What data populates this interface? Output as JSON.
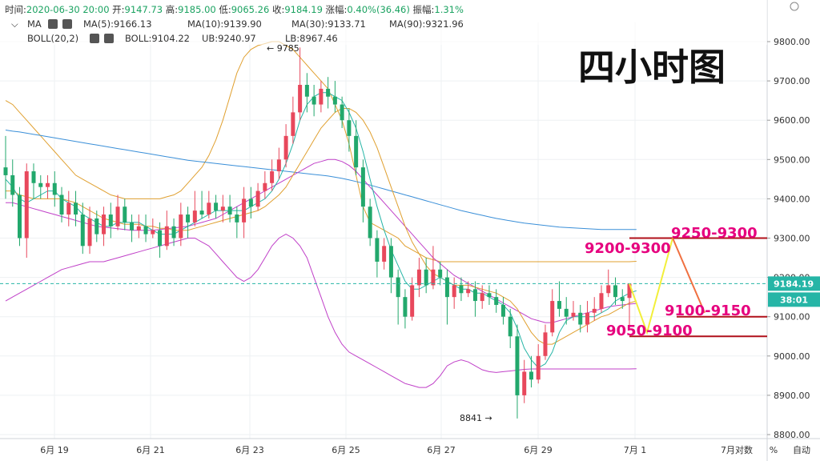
{
  "header": {
    "line1": [
      {
        "label": "时间:",
        "value": "2020-06-30 20:00"
      },
      {
        "label": "开:",
        "value": "9147.73"
      },
      {
        "label": "高:",
        "value": "9185.00"
      },
      {
        "label": "低:",
        "value": "9065.26"
      },
      {
        "label": "收:",
        "value": "9184.19"
      },
      {
        "label": "涨幅:",
        "value": "0.40%(36.46)"
      },
      {
        "label": "振幅:",
        "value": "1.31%"
      }
    ],
    "ma_label": "MA",
    "ma_items": [
      {
        "text": "MA(5):9166.13",
        "color": "#26b5a6"
      },
      {
        "text": "MA(10):9139.90",
        "color": "#e0a030"
      },
      {
        "text": "MA(30):9133.71",
        "color": "#c040c8"
      },
      {
        "text": "MA(90):9321.96",
        "color": "#3a8fd8"
      }
    ],
    "boll_label": "BOLL(20,2)",
    "boll_items": [
      {
        "text": "BOLL:9104.22",
        "color": "#26b5a6"
      },
      {
        "text": "UB:9240.97",
        "color": "#e0a030"
      },
      {
        "text": "LB:8967.46",
        "color": "#c040c8"
      }
    ]
  },
  "annotation_title": "四小时图",
  "annotations": {
    "high_mark": "9785",
    "low_mark": "8841",
    "current_price": "9184.19",
    "countdown": "38:01",
    "zones": [
      {
        "label": "9250-9300",
        "level": 9300
      },
      {
        "label": "9200-9300",
        "level": 9300
      },
      {
        "label": "9100-9150",
        "level": 9100
      },
      {
        "label": "9050-9100",
        "level": 9050
      }
    ]
  },
  "bottom_bar": {
    "percent": "%",
    "auto": "自动"
  },
  "colors": {
    "up": "#e8485c",
    "down": "#22a86c",
    "ma5": "#26b5a6",
    "ma10": "#e0a030",
    "ma30": "#c040c8",
    "ma90": "#3a8fd8",
    "zone": "#e6007e"
  },
  "chart_data": {
    "type": "candlestick",
    "ylim": [
      8800,
      9850
    ],
    "yticks": [
      8800,
      8900,
      9000,
      9100,
      9200,
      9300,
      9400,
      9500,
      9600,
      9700,
      9800
    ],
    "x_labels": [
      "6月 19",
      "6月 21",
      "6月 23",
      "6月 25",
      "6月 27",
      "6月 29",
      "7月 1",
      "7月对数"
    ],
    "candles": [
      [
        9480,
        9460,
        9560,
        9400
      ],
      [
        9460,
        9410,
        9500,
        9380
      ],
      [
        9410,
        9300,
        9430,
        9280
      ],
      [
        9300,
        9470,
        9490,
        9250
      ],
      [
        9470,
        9440,
        9490,
        9400
      ],
      [
        9440,
        9430,
        9460,
        9400
      ],
      [
        9430,
        9440,
        9460,
        9400
      ],
      [
        9440,
        9410,
        9470,
        9380
      ],
      [
        9410,
        9360,
        9430,
        9340
      ],
      [
        9360,
        9390,
        9420,
        9330
      ],
      [
        9390,
        9360,
        9420,
        9330
      ],
      [
        9360,
        9280,
        9390,
        9260
      ],
      [
        9280,
        9350,
        9380,
        9260
      ],
      [
        9350,
        9310,
        9370,
        9290
      ],
      [
        9310,
        9360,
        9380,
        9280
      ],
      [
        9360,
        9330,
        9390,
        9300
      ],
      [
        9330,
        9380,
        9410,
        9320
      ],
      [
        9380,
        9340,
        9400,
        9320
      ],
      [
        9340,
        9320,
        9360,
        9290
      ],
      [
        9320,
        9330,
        9360,
        9300
      ],
      [
        9330,
        9310,
        9360,
        9290
      ],
      [
        9310,
        9320,
        9350,
        9300
      ],
      [
        9320,
        9280,
        9340,
        9250
      ],
      [
        9280,
        9330,
        9370,
        9270
      ],
      [
        9330,
        9300,
        9350,
        9280
      ],
      [
        9300,
        9360,
        9390,
        9280
      ],
      [
        9360,
        9340,
        9380,
        9300
      ],
      [
        9340,
        9370,
        9420,
        9330
      ],
      [
        9370,
        9360,
        9420,
        9350
      ],
      [
        9360,
        9390,
        9420,
        9350
      ],
      [
        9390,
        9370,
        9410,
        9350
      ],
      [
        9370,
        9380,
        9410,
        9340
      ],
      [
        9380,
        9360,
        9410,
        9340
      ],
      [
        9360,
        9340,
        9380,
        9300
      ],
      [
        9340,
        9400,
        9430,
        9300
      ],
      [
        9400,
        9380,
        9430,
        9350
      ],
      [
        9380,
        9420,
        9440,
        9370
      ],
      [
        9420,
        9440,
        9470,
        9400
      ],
      [
        9440,
        9470,
        9500,
        9420
      ],
      [
        9470,
        9500,
        9530,
        9450
      ],
      [
        9500,
        9560,
        9590,
        9480
      ],
      [
        9560,
        9620,
        9660,
        9540
      ],
      [
        9620,
        9690,
        9785,
        9600
      ],
      [
        9690,
        9660,
        9720,
        9620
      ],
      [
        9660,
        9640,
        9690,
        9610
      ],
      [
        9640,
        9680,
        9700,
        9620
      ],
      [
        9680,
        9660,
        9710,
        9630
      ],
      [
        9660,
        9640,
        9700,
        9620
      ],
      [
        9640,
        9600,
        9660,
        9580
      ],
      [
        9600,
        9560,
        9630,
        9520
      ],
      [
        9560,
        9480,
        9600,
        9460
      ],
      [
        9480,
        9380,
        9500,
        9340
      ],
      [
        9380,
        9300,
        9400,
        9280
      ],
      [
        9300,
        9240,
        9320,
        9200
      ],
      [
        9240,
        9280,
        9300,
        9220
      ],
      [
        9280,
        9200,
        9300,
        9160
      ],
      [
        9200,
        9150,
        9220,
        9080
      ],
      [
        9150,
        9100,
        9170,
        9070
      ],
      [
        9100,
        9180,
        9200,
        9090
      ],
      [
        9180,
        9220,
        9250,
        9150
      ],
      [
        9220,
        9180,
        9250,
        9160
      ],
      [
        9180,
        9220,
        9280,
        9170
      ],
      [
        9220,
        9200,
        9240,
        9180
      ],
      [
        9200,
        9150,
        9220,
        9080
      ],
      [
        9150,
        9180,
        9200,
        9120
      ],
      [
        9180,
        9160,
        9200,
        9140
      ],
      [
        9160,
        9170,
        9190,
        9150
      ],
      [
        9170,
        9140,
        9190,
        9100
      ],
      [
        9140,
        9160,
        9180,
        9120
      ],
      [
        9160,
        9150,
        9180,
        9130
      ],
      [
        9150,
        9130,
        9170,
        9110
      ],
      [
        9130,
        9100,
        9150,
        9080
      ],
      [
        9100,
        9050,
        9120,
        9020
      ],
      [
        9050,
        8900,
        9080,
        8841
      ],
      [
        8900,
        8960,
        8990,
        8880
      ],
      [
        8960,
        8940,
        9000,
        8920
      ],
      [
        8940,
        9000,
        9030,
        8930
      ],
      [
        9000,
        9060,
        9080,
        8990
      ],
      [
        9060,
        9140,
        9170,
        9050
      ],
      [
        9140,
        9120,
        9190,
        9100
      ],
      [
        9120,
        9100,
        9150,
        9080
      ],
      [
        9100,
        9110,
        9140,
        9090
      ],
      [
        9110,
        9080,
        9130,
        9060
      ],
      [
        9080,
        9110,
        9140,
        9060
      ],
      [
        9110,
        9120,
        9150,
        9090
      ],
      [
        9120,
        9160,
        9180,
        9110
      ],
      [
        9160,
        9180,
        9220,
        9150
      ],
      [
        9180,
        9150,
        9200,
        9130
      ],
      [
        9150,
        9140,
        9170,
        9120
      ],
      [
        9147.73,
        9184.19,
        9185,
        9065.26
      ]
    ],
    "ma5": [
      9450,
      9430,
      9400,
      9390,
      9400,
      9410,
      9420,
      9420,
      9400,
      9390,
      9380,
      9360,
      9350,
      9340,
      9330,
      9330,
      9340,
      9340,
      9340,
      9340,
      9330,
      9320,
      9310,
      9310,
      9310,
      9320,
      9330,
      9340,
      9350,
      9360,
      9370,
      9370,
      9370,
      9370,
      9370,
      9380,
      9390,
      9400,
      9420,
      9450,
      9490,
      9540,
      9600,
      9640,
      9660,
      9670,
      9670,
      9660,
      9650,
      9620,
      9580,
      9520,
      9450,
      9380,
      9320,
      9270,
      9230,
      9190,
      9170,
      9170,
      9180,
      9190,
      9200,
      9190,
      9180,
      9170,
      9170,
      9160,
      9160,
      9150,
      9140,
      9130,
      9110,
      9070,
      9020,
      8990,
      8970,
      8980,
      9010,
      9060,
      9090,
      9100,
      9100,
      9100,
      9100,
      9110,
      9120,
      9140,
      9150,
      9160,
      9166.13
    ],
    "ma10": [
      9420,
      9420,
      9410,
      9405,
      9400,
      9400,
      9400,
      9400,
      9400,
      9395,
      9390,
      9380,
      9370,
      9360,
      9350,
      9345,
      9340,
      9335,
      9335,
      9335,
      9330,
      9330,
      9325,
      9325,
      9320,
      9320,
      9320,
      9325,
      9330,
      9335,
      9340,
      9345,
      9350,
      9355,
      9360,
      9365,
      9370,
      9380,
      9395,
      9410,
      9430,
      9460,
      9490,
      9520,
      9550,
      9580,
      9600,
      9620,
      9630,
      9630,
      9620,
      9600,
      9570,
      9530,
      9480,
      9430,
      9380,
      9330,
      9290,
      9260,
      9230,
      9210,
      9200,
      9190,
      9180,
      9180,
      9180,
      9175,
      9170,
      9165,
      9160,
      9150,
      9140,
      9120,
      9090,
      9060,
      9040,
      9030,
      9030,
      9040,
      9050,
      9060,
      9070,
      9080,
      9090,
      9100,
      9105,
      9115,
      9125,
      9135,
      9139.9
    ],
    "ma30": [
      9390,
      9390,
      9385,
      9380,
      9375,
      9370,
      9365,
      9360,
      9355,
      9350,
      9345,
      9340,
      9335,
      9330,
      9328,
      9326,
      9324,
      9322,
      9320,
      9320,
      9320,
      9320,
      9322,
      9324,
      9326,
      9328,
      9330,
      9335,
      9340,
      9345,
      9350,
      9360,
      9370,
      9380,
      9390,
      9400,
      9410,
      9420,
      9430,
      9440,
      9450,
      9460,
      9470,
      9480,
      9490,
      9495,
      9500,
      9500,
      9495,
      9485,
      9470,
      9450,
      9430,
      9410,
      9390,
      9370,
      9350,
      9330,
      9310,
      9290,
      9270,
      9250,
      9235,
      9220,
      9205,
      9195,
      9185,
      9175,
      9165,
      9155,
      9145,
      9135,
      9125,
      9115,
      9105,
      9095,
      9090,
      9085,
      9085,
      9090,
      9095,
      9100,
      9105,
      9110,
      9115,
      9120,
      9125,
      9128,
      9130,
      9132,
      9133.71
    ],
    "ma90": [
      9575,
      9572,
      9570,
      9567,
      9564,
      9561,
      9558,
      9555,
      9552,
      9549,
      9546,
      9543,
      9540,
      9537,
      9534,
      9531,
      9528,
      9525,
      9522,
      9519,
      9516,
      9513,
      9510,
      9507,
      9504,
      9501,
      9498,
      9496,
      9494,
      9492,
      9490,
      9488,
      9486,
      9484,
      9482,
      9480,
      9478,
      9476,
      9474,
      9472,
      9470,
      9468,
      9466,
      9464,
      9462,
      9460,
      9458,
      9455,
      9452,
      9448,
      9444,
      9440,
      9435,
      9430,
      9425,
      9420,
      9415,
      9410,
      9405,
      9400,
      9395,
      9390,
      9385,
      9380,
      9375,
      9370,
      9366,
      9362,
      9358,
      9354,
      9350,
      9347,
      9344,
      9341,
      9338,
      9336,
      9334,
      9332,
      9330,
      9328,
      9327,
      9326,
      9325,
      9324,
      9323,
      9322,
      9322,
      9322,
      9322,
      9322,
      9321.96
    ],
    "ub": [
      9650,
      9640,
      9620,
      9600,
      9580,
      9560,
      9540,
      9520,
      9500,
      9480,
      9460,
      9450,
      9440,
      9430,
      9420,
      9410,
      9405,
      9400,
      9400,
      9400,
      9400,
      9400,
      9400,
      9405,
      9410,
      9420,
      9440,
      9460,
      9480,
      9510,
      9550,
      9600,
      9660,
      9720,
      9760,
      9780,
      9790,
      9795,
      9800,
      9800,
      9790,
      9780,
      9760,
      9740,
      9720,
      9700,
      9680,
      9640,
      9600,
      9540,
      9460,
      9380,
      9340,
      9330,
      9320,
      9310,
      9300,
      9280,
      9270,
      9260,
      9250,
      9245,
      9240,
      9240,
      9240,
      9240,
      9240,
      9240,
      9240,
      9240,
      9240,
      9240,
      9240,
      9240,
      9240,
      9240,
      9240,
      9240,
      9240,
      9240,
      9240,
      9240,
      9240,
      9240,
      9240,
      9240,
      9240,
      9240,
      9240,
      9240,
      9240.97
    ],
    "lb": [
      9140,
      9150,
      9160,
      9170,
      9180,
      9190,
      9200,
      9210,
      9220,
      9225,
      9230,
      9235,
      9240,
      9240,
      9240,
      9245,
      9250,
      9255,
      9260,
      9265,
      9270,
      9275,
      9280,
      9285,
      9290,
      9295,
      9300,
      9300,
      9290,
      9280,
      9260,
      9240,
      9220,
      9200,
      9190,
      9200,
      9220,
      9250,
      9280,
      9300,
      9310,
      9300,
      9280,
      9250,
      9200,
      9150,
      9100,
      9060,
      9030,
      9010,
      9000,
      8990,
      8980,
      8970,
      8960,
      8950,
      8940,
      8930,
      8925,
      8920,
      8920,
      8930,
      8950,
      8975,
      8985,
      8990,
      8985,
      8975,
      8965,
      8960,
      8958,
      8960,
      8962,
      8964,
      8966,
      8967,
      8967,
      8967,
      8967,
      8967,
      8967,
      8967,
      8967,
      8967,
      8967,
      8967,
      8967,
      8967,
      8967,
      8967,
      8967.46
    ]
  }
}
